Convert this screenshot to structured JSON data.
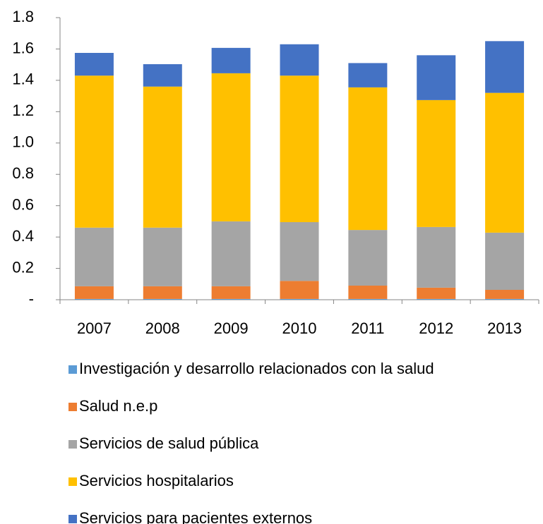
{
  "chart_data": {
    "type": "stacked_bar",
    "categories": [
      "2007",
      "2008",
      "2009",
      "2010",
      "2011",
      "2012",
      "2013"
    ],
    "series": [
      {
        "name": "Investigación y desarrollo relacionados con la salud",
        "color": "#5b9bd5",
        "values": [
          0.005,
          0.005,
          0.005,
          0.005,
          0.005,
          0.005,
          0.005
        ]
      },
      {
        "name": "Salud n.e.p",
        "color": "#ed7d31",
        "values": [
          0.081,
          0.081,
          0.081,
          0.115,
          0.085,
          0.072,
          0.058
        ]
      },
      {
        "name": "Servicios de salud pública",
        "color": "#a5a5a5",
        "values": [
          0.374,
          0.374,
          0.414,
          0.375,
          0.355,
          0.387,
          0.365
        ]
      },
      {
        "name": "Servicios hospitalarios",
        "color": "#ffc000",
        "values": [
          0.97,
          0.9,
          0.945,
          0.935,
          0.91,
          0.81,
          0.892
        ]
      },
      {
        "name": "Servicios para pacientes externos",
        "color": "#4472c4",
        "values": [
          0.145,
          0.143,
          0.162,
          0.2,
          0.155,
          0.286,
          0.33
        ]
      }
    ],
    "ylim": [
      0,
      1.8
    ],
    "yticks": [
      {
        "value": 0,
        "label": "-"
      },
      0.2,
      0.4,
      0.6,
      0.8,
      {
        "value": 1,
        "label": "1.0"
      },
      1.2,
      1.4,
      1.6,
      1.8
    ],
    "legend": "bottom"
  }
}
